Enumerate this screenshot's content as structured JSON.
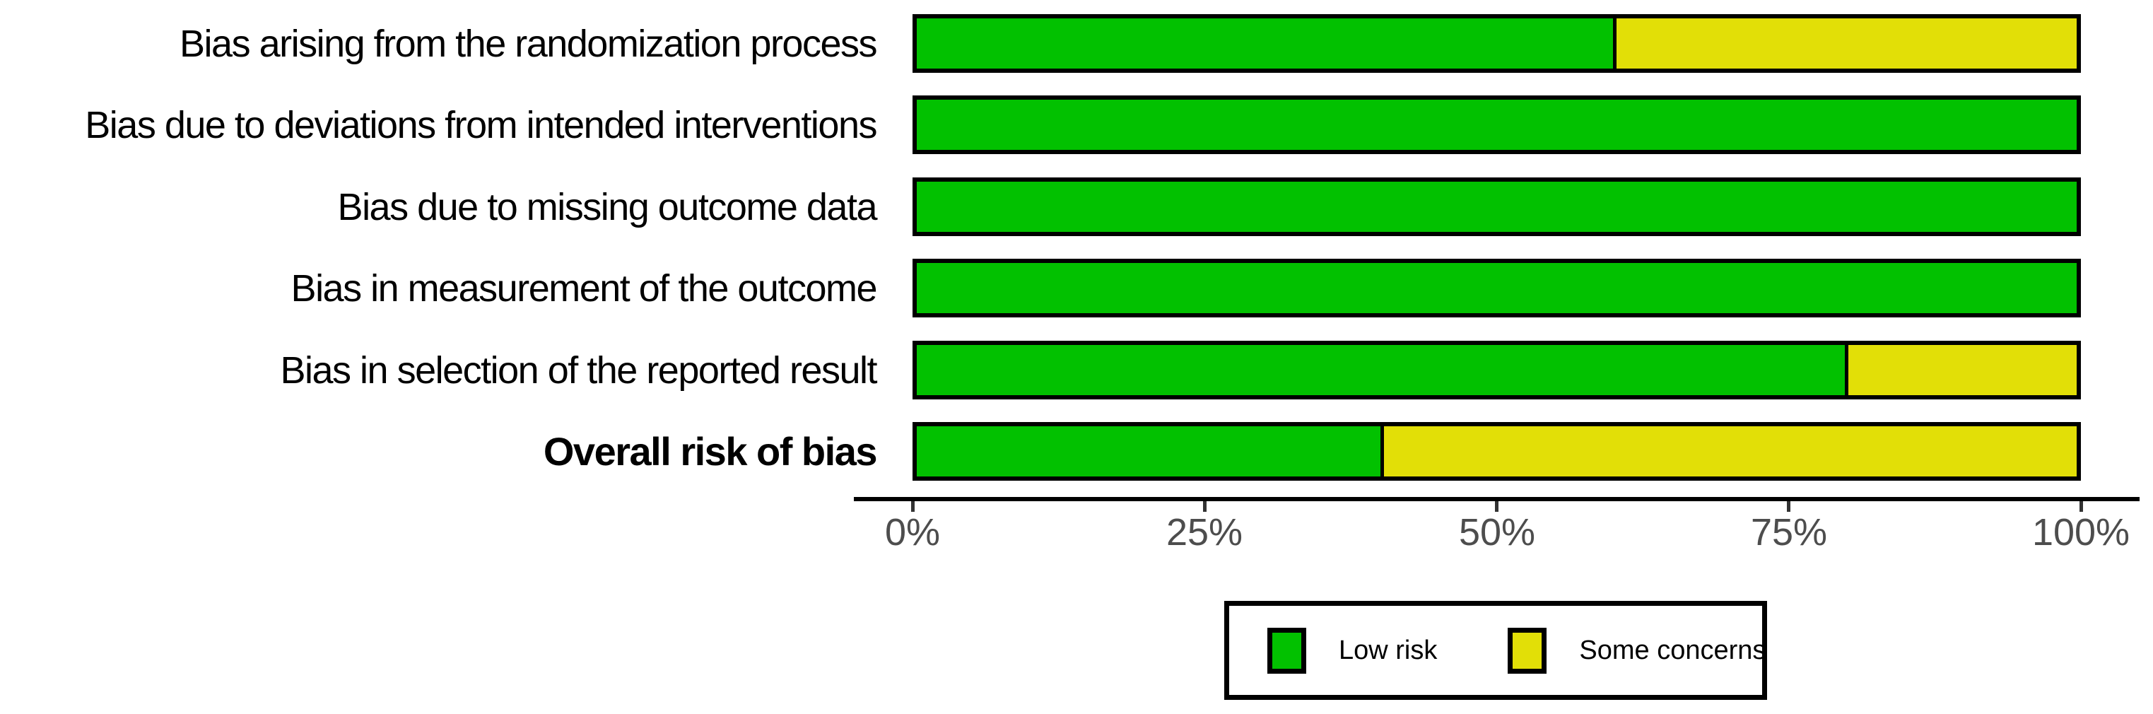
{
  "chart_data": {
    "type": "bar",
    "orientation": "horizontal",
    "stacked": true,
    "title": "",
    "xlabel": "",
    "ylabel": "",
    "grid": false,
    "categories": [
      {
        "label": "Bias arising from the randomization process",
        "bold": false
      },
      {
        "label": "Bias due to deviations from intended interventions",
        "bold": false
      },
      {
        "label": "Bias due to missing outcome data",
        "bold": false
      },
      {
        "label": "Bias in measurement of the outcome",
        "bold": false
      },
      {
        "label": "Bias in selection of the reported result",
        "bold": false
      },
      {
        "label": "Overall risk of bias",
        "bold": true
      }
    ],
    "series": [
      {
        "name": "Low risk",
        "color": "#02C100",
        "values": [
          60,
          100,
          100,
          100,
          80,
          40
        ]
      },
      {
        "name": "Some concerns",
        "color": "#E2DF07",
        "values": [
          40,
          0,
          0,
          0,
          20,
          60
        ]
      }
    ],
    "x_axis": {
      "range": [
        0,
        100
      ],
      "tick_values": [
        0,
        25,
        50,
        75,
        100
      ],
      "tick_labels": [
        "0%",
        "25%",
        "50%",
        "75%",
        "100%"
      ]
    },
    "legend": {
      "position": "bottom-center",
      "entries": [
        {
          "label": "Low risk",
          "color": "#02C100"
        },
        {
          "label": "Some concerns",
          "color": "#E2DF07"
        }
      ]
    }
  },
  "colors": {
    "low_risk": "#02C100",
    "some_concerns": "#E2DF07",
    "bar_border": "#000000",
    "axis_line": "#000000",
    "tick_label": "#4d4d4d",
    "category_label": "#000000"
  }
}
